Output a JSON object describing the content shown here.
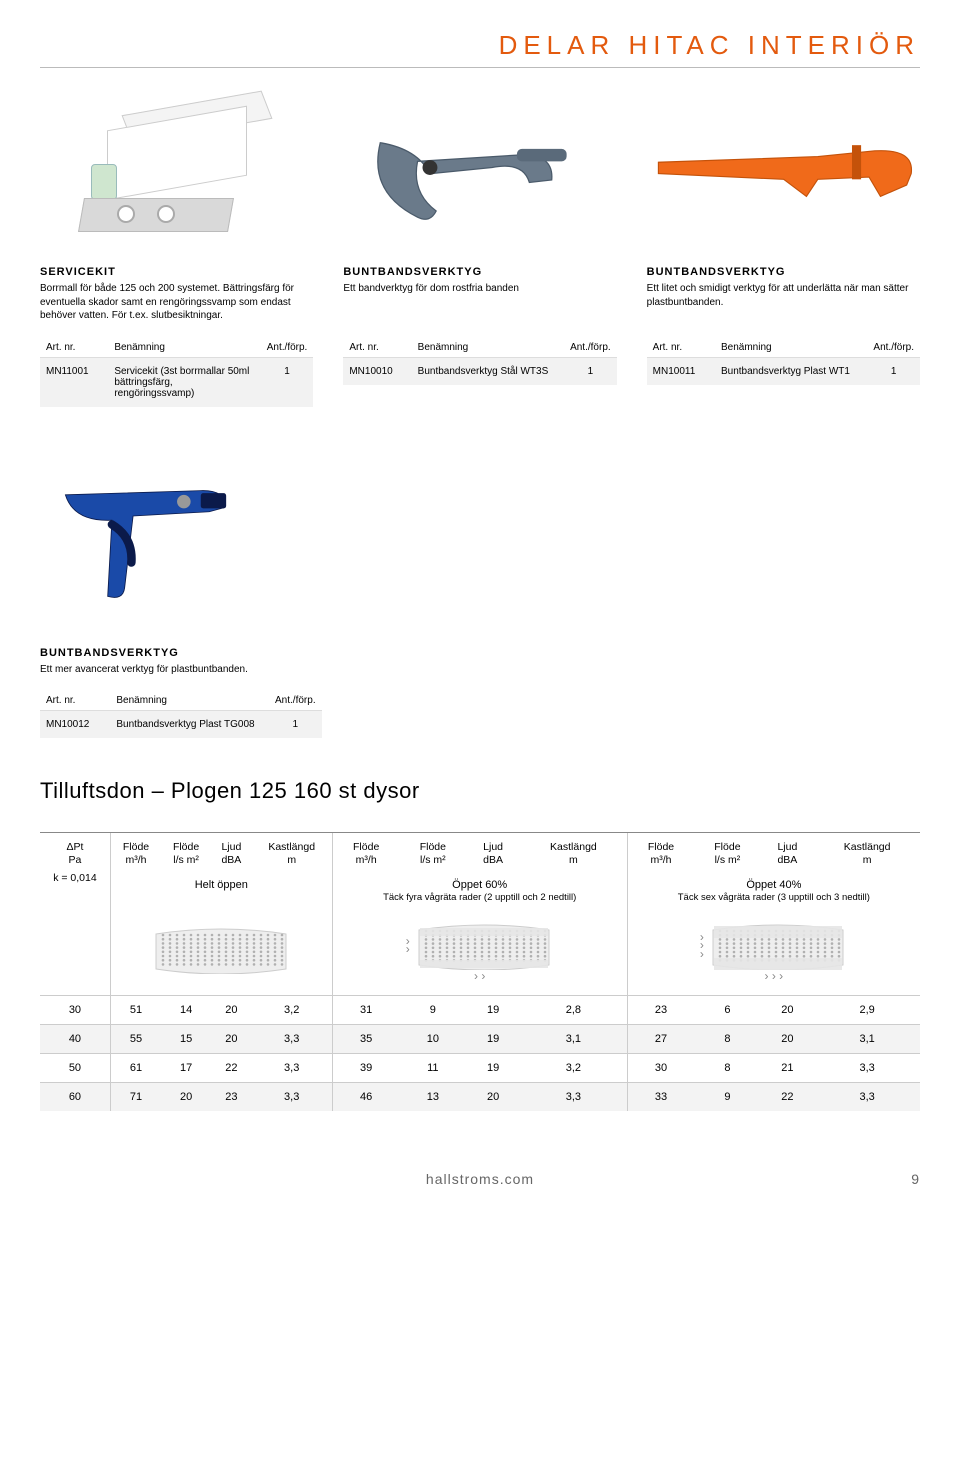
{
  "page_title": "DELAR HITAC INTERIÖR",
  "title_color": "#e35a0e",
  "columns": [
    {
      "heading": "SERVICEKIT",
      "desc": "Borrmall för både 125 och 200 systemet. Bättringsfärg för eventuella skador samt en rengöringssvamp som endast behöver vatten. För t.ex. slutbesiktningar.",
      "th_art": "Art. nr.",
      "th_ben": "Benämning",
      "th_ant": "Ant./förp.",
      "art": "MN11001",
      "ben": "Servicekit (3st borrmallar 50ml bättringsfärg, rengöringssvamp)",
      "qty": "1"
    },
    {
      "heading": "BUNTBANDSVERKTYG",
      "desc": "Ett bandverktyg för dom rostfria banden",
      "th_art": "Art. nr.",
      "th_ben": "Benämning",
      "th_ant": "Ant./förp.",
      "art": "MN10010",
      "ben": "Buntbandsverktyg Stål WT3S",
      "qty": "1"
    },
    {
      "heading": "BUNTBANDSVERKTYG",
      "desc": "Ett litet och smidigt verktyg för att underlätta när man sätter plastbuntbanden.",
      "th_art": "Art. nr.",
      "th_ben": "Benämning",
      "th_ant": "Ant./förp.",
      "art": "MN10011",
      "ben": "Buntbandsverktyg Plast WT1",
      "qty": "1"
    }
  ],
  "col4": {
    "heading": "BUNTBANDSVERKTYG",
    "desc": "Ett mer avancerat verktyg för plastbuntbanden.",
    "th_art": "Art. nr.",
    "th_ben": "Benämning",
    "th_ant": "Ant./förp.",
    "art": "MN10012",
    "ben": "Buntbandsverktyg Plast TG008",
    "qty": "1"
  },
  "section_title": "Tilluftsdon – Plogen 125 160 st dysor",
  "bigtable": {
    "col0": {
      "l1": "ΔPt",
      "l2": "Pa",
      "l3": "k = 0,014"
    },
    "group_labels": {
      "flode_m3h": "Flöde",
      "flode_m3h_u": "m³/h",
      "flode_ls": "Flöde",
      "flode_ls_u": "l/s m²",
      "ljud": "Ljud",
      "ljud_u": "dBA",
      "kast": "Kastlängd",
      "kast_u": "m"
    },
    "group_sub": [
      "Helt öppen",
      "Öppet 60%",
      "Öppet 40%"
    ],
    "group_sub2": [
      "",
      "Täck fyra vågräta rader (2 upptill och 2 nedtill)",
      "Täck sex vågräta rader (3 upptill och 3 nedtill)"
    ],
    "rows": [
      {
        "p": "30",
        "g1": [
          "51",
          "14",
          "20",
          "3,2"
        ],
        "g2": [
          "31",
          "9",
          "19",
          "2,8"
        ],
        "g3": [
          "23",
          "6",
          "20",
          "2,9"
        ]
      },
      {
        "p": "40",
        "g1": [
          "55",
          "15",
          "20",
          "3,3"
        ],
        "g2": [
          "35",
          "10",
          "19",
          "3,1"
        ],
        "g3": [
          "27",
          "8",
          "20",
          "3,1"
        ]
      },
      {
        "p": "50",
        "g1": [
          "61",
          "17",
          "22",
          "3,3"
        ],
        "g2": [
          "39",
          "11",
          "19",
          "3,2"
        ],
        "g3": [
          "30",
          "8",
          "21",
          "3,3"
        ]
      },
      {
        "p": "60",
        "g1": [
          "71",
          "20",
          "23",
          "3,3"
        ],
        "g2": [
          "46",
          "13",
          "20",
          "3,3"
        ],
        "g3": [
          "33",
          "9",
          "22",
          "3,3"
        ]
      }
    ]
  },
  "footer_text": "hallstroms.com",
  "page_number": "9",
  "colors": {
    "orange": "#e35a0e",
    "clamp_blue": "#6a7a8a",
    "plast_orange": "#f06a1a",
    "gun_blue": "#1a4aa8",
    "gun_dark": "#0b1a4a",
    "grille_grey": "#d9d9d9",
    "grille_dot": "#b0b0b0"
  }
}
